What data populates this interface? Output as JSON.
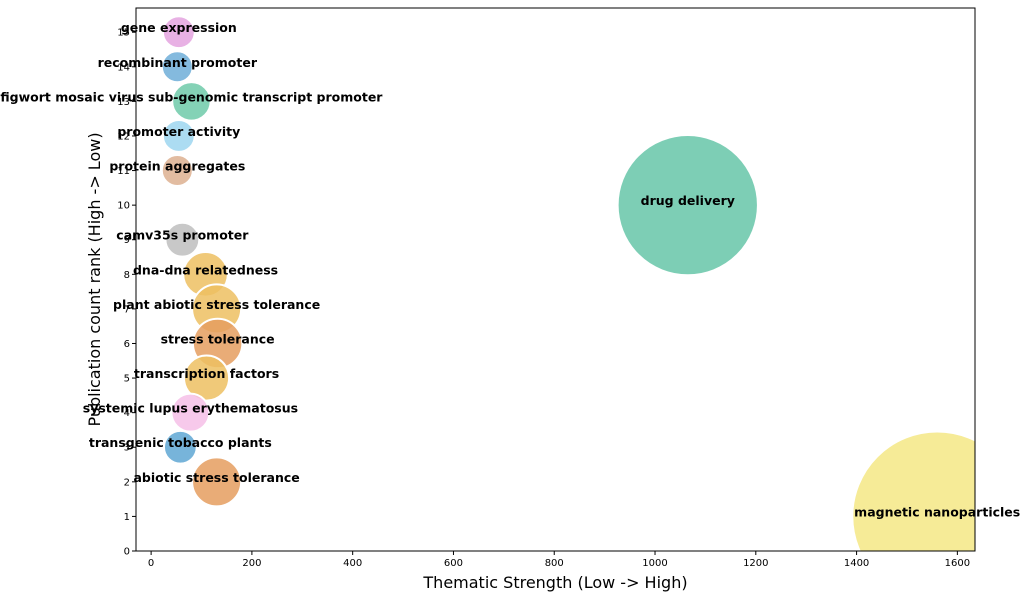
{
  "chart_data": {
    "type": "scatter",
    "title": "",
    "xlabel": "Thematic Strength (Low -> High)",
    "ylabel": "Publication count rank (High -> Low)",
    "xlim": [
      -30,
      1635
    ],
    "ylim": [
      0,
      15.7
    ],
    "x_ticks": [
      0,
      200,
      400,
      600,
      800,
      1000,
      1200,
      1400,
      1600
    ],
    "y_ticks": [
      0,
      1,
      2,
      3,
      4,
      5,
      6,
      7,
      8,
      9,
      10,
      11,
      12,
      13,
      14,
      15
    ],
    "grid": false,
    "points": [
      {
        "label": "gene expression",
        "x": 55,
        "y": 15,
        "size": 55,
        "color": "#e4a3df"
      },
      {
        "label": "recombinant promoter",
        "x": 52,
        "y": 14,
        "size": 52,
        "color": "#6faed8"
      },
      {
        "label": "figwort mosaic virus sub-genomic transcript promoter",
        "x": 80,
        "y": 13,
        "size": 80,
        "color": "#6fcaa9"
      },
      {
        "label": "promoter activity",
        "x": 55,
        "y": 12,
        "size": 55,
        "color": "#9dd6f0"
      },
      {
        "label": "protein aggregates",
        "x": 52,
        "y": 11,
        "size": 52,
        "color": "#ddb090"
      },
      {
        "label": "drug delivery",
        "x": 1065,
        "y": 10,
        "size": 1065,
        "color": "#66c6a8"
      },
      {
        "label": "camv35s promoter",
        "x": 62,
        "y": 9,
        "size": 62,
        "color": "#bebebe"
      },
      {
        "label": "dna-dna relatedness",
        "x": 108,
        "y": 8,
        "size": 108,
        "color": "#edbf62"
      },
      {
        "label": "plant abiotic stress tolerance",
        "x": 130,
        "y": 7,
        "size": 130,
        "color": "#edbf62"
      },
      {
        "label": "stress tolerance",
        "x": 132,
        "y": 6,
        "size": 132,
        "color": "#e59d5f"
      },
      {
        "label": "transcription factors",
        "x": 110,
        "y": 5,
        "size": 110,
        "color": "#edbf62"
      },
      {
        "label": "systemic lupus erythematosus",
        "x": 78,
        "y": 4,
        "size": 78,
        "color": "#f6bfe8"
      },
      {
        "label": "transgenic tobacco plants",
        "x": 58,
        "y": 3,
        "size": 58,
        "color": "#5fa7d4"
      },
      {
        "label": "abiotic stress tolerance",
        "x": 130,
        "y": 2,
        "size": 130,
        "color": "#e59d5f"
      },
      {
        "label": "magnetic nanoparticles",
        "x": 1560,
        "y": 1,
        "size": 1560,
        "color": "#f4e785"
      }
    ]
  }
}
